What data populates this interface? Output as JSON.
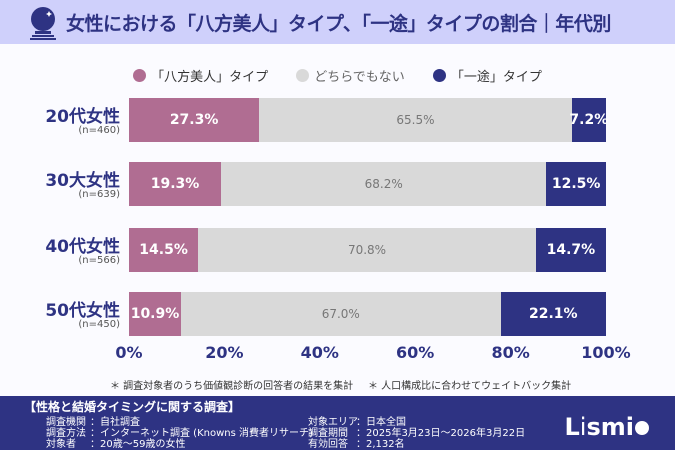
{
  "title": "女性における「八方美人」タイプ、「一途」タイプの割合｜年代別",
  "colors": {
    "happo": "#b06d92",
    "neither": "#d9d9d9",
    "ichizu": "#2e3383",
    "header_bg": "#cfd0fb"
  },
  "chart_data": {
    "type": "bar",
    "orientation": "horizontal",
    "stacked": true,
    "categories": [
      "20代女性",
      "30大女性",
      "40代女性",
      "50代女性"
    ],
    "sample_sizes": [
      "(n=460)",
      "(n=639)",
      "(n=566)",
      "(n=450)"
    ],
    "series": [
      {
        "name": "「八方美人」タイプ",
        "values": [
          27.3,
          19.3,
          14.5,
          10.9
        ],
        "labels": [
          "27.3%",
          "19.3%",
          "14.5%",
          "10.9%"
        ]
      },
      {
        "name": "どちらでもない",
        "values": [
          65.5,
          68.2,
          70.8,
          67.0
        ],
        "labels": [
          "65.5%",
          "68.2%",
          "70.8%",
          "67.0%"
        ]
      },
      {
        "name": "「一途」タイプ",
        "values": [
          7.2,
          12.5,
          14.7,
          22.1
        ],
        "labels": [
          "7.2%",
          "12.5%",
          "14.7%",
          "22.1%"
        ]
      }
    ],
    "xlim": [
      0,
      100
    ],
    "xticks": [
      "0%",
      "20%",
      "40%",
      "60%",
      "80%",
      "100%"
    ],
    "legend_position": "top"
  },
  "notes": [
    "＊ 調査対象者のうち価値観診断の回答者の結果を集計",
    "＊ 人口構成比に合わせてウェイトバック集計"
  ],
  "footer": {
    "title": "【性格と結婚タイミングに関する調査】",
    "left": [
      {
        "k": "調査機関",
        "v": "：自社調査"
      },
      {
        "k": "調査方法",
        "v": "：インターネット調査 (Knowns 消費者リサーチ)"
      },
      {
        "k": "対象者",
        "v": "：20歳～59歳の女性"
      }
    ],
    "right": [
      {
        "k": "対象エリア",
        "v": "：日本全国"
      },
      {
        "k": "調査期間",
        "v": "：2025年3月23日～2026年3月22日"
      },
      {
        "k": "有効回答",
        "v": "：2,132名"
      }
    ],
    "logo": "Lismi"
  }
}
